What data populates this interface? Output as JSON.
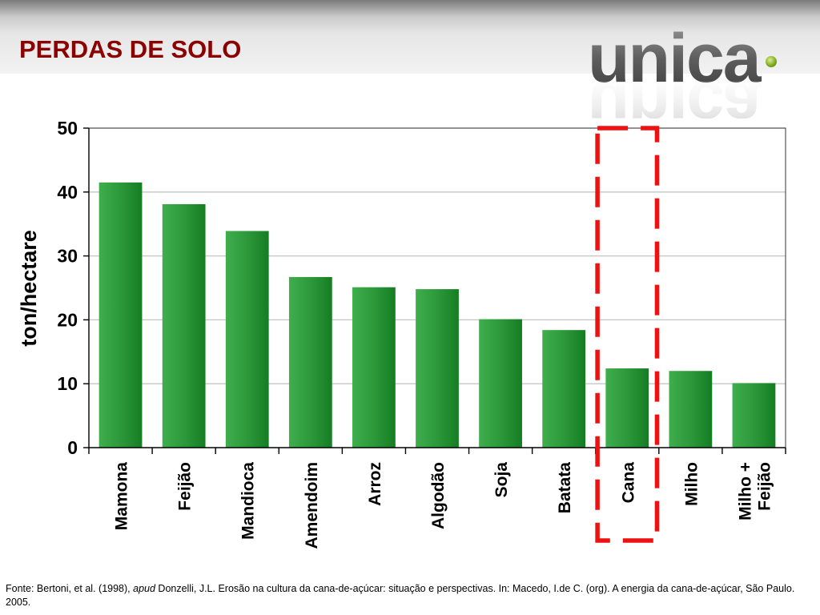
{
  "page": {
    "title": "PERDAS DE SOLO"
  },
  "logo": {
    "text": "unica"
  },
  "chart_data": {
    "type": "bar",
    "title": "",
    "xlabel": "",
    "ylabel": "ton/hectare",
    "ylim": [
      0,
      50
    ],
    "yticks": [
      0,
      10,
      20,
      30,
      40,
      50
    ],
    "grid": true,
    "categories": [
      "Mamona",
      "Feijão",
      "Mandioca",
      "Amendoim",
      "Arroz",
      "Algodão",
      "Soja",
      "Batata",
      "Cana",
      "Milho",
      "Milho + Feijão"
    ],
    "values": [
      41.5,
      38.1,
      33.9,
      26.7,
      25.1,
      24.8,
      20.1,
      18.4,
      12.4,
      12.0,
      10.1
    ],
    "bar_color": "#2e9a3c",
    "highlight": {
      "category": "Cana",
      "style": "red dashed box",
      "color": "#ee1111"
    }
  },
  "footnote": {
    "prefix": "Fonte: Bertoni, et al. (1998), ",
    "italic": "apud",
    "suffix": " Donzelli, J.L. Erosão na cultura da cana-de-açúcar: situação e perspectivas. In: Macedo, I.de C. (org). A energia da cana-de-açúcar, São Paulo. 2005."
  }
}
